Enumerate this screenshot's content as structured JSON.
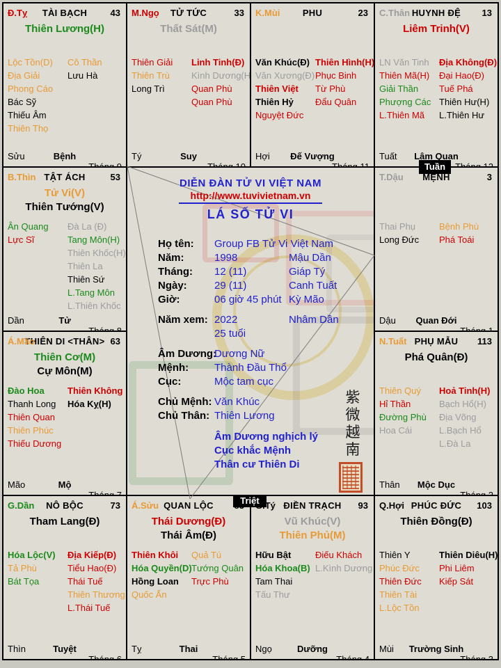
{
  "palette": {
    "red": "#cc0000",
    "orange": "#e89b35",
    "green": "#1a8a1a",
    "gray": "#9c9c9c",
    "black": "#000000",
    "blue": "#2222cc"
  },
  "badges": {
    "tuan": "Tuần",
    "triet": "Triệt"
  },
  "center": {
    "forum_title": "DIỄN ĐÀN TỬ VI VIỆT NAM",
    "url": "http://www.tuvivietnam.vn",
    "chart_title": "LÁ SỐ TỬ VI",
    "fields": [
      {
        "label": "Họ tên:",
        "v1": "Group FB Tử Vi Việt Nam",
        "v2": ""
      },
      {
        "label": "Năm:",
        "v1": "1998",
        "v2": "Mậu Dần"
      },
      {
        "label": "Tháng:",
        "v1": "12 (11)",
        "v2": "Giáp Tý"
      },
      {
        "label": "Ngày:",
        "v1": "29 (11)",
        "v2": "Canh Tuất"
      },
      {
        "label": "Giờ:",
        "v1": "06 giờ 45 phút",
        "v2": "Kỳ Mão"
      },
      {
        "label": "Năm xem:",
        "v1": "2022",
        "v2": "Nhâm Dần",
        "gap": true
      },
      {
        "label": "",
        "v1": "25 tuổi",
        "v2": ""
      },
      {
        "label": "Âm Dương:",
        "v1": "Dương Nữ",
        "v2": "",
        "gap": true
      },
      {
        "label": "Mệnh:",
        "v1": "Thành Đầu Thổ",
        "v2": ""
      },
      {
        "label": "Cục:",
        "v1": "Mộc tam cục",
        "v2": ""
      },
      {
        "label": "Chủ Mệnh:",
        "v1": "Văn Khúc",
        "v2": "",
        "gap": true
      },
      {
        "label": "Chủ Thân:",
        "v1": "Thiên Lương",
        "v2": ""
      }
    ],
    "notes": [
      "Âm Dương nghịch lý",
      "Cục khắc Mệnh",
      "Thân cư Thiên Di"
    ],
    "vertical_text": "紫微越南"
  },
  "palaces": [
    {
      "id": "tai-bach",
      "grid": {
        "row": 1,
        "col": 1
      },
      "chi": {
        "t": "Đ.Tỵ",
        "c": "red"
      },
      "name": "TÀI BẠCH",
      "num": "43",
      "mains": [
        {
          "t": "Thiên Lương(H)",
          "c": "green"
        }
      ],
      "left": [
        {
          "t": "Lộc Tồn(D)",
          "c": "orange"
        },
        {
          "t": "Địa Giải",
          "c": "orange"
        },
        {
          "t": "Phong Cáo",
          "c": "orange"
        },
        {
          "t": "Bác Sỹ",
          "c": "black"
        },
        {
          "t": "Thiếu Âm",
          "c": "black"
        },
        {
          "t": "Thiên Thọ",
          "c": "orange"
        }
      ],
      "right": [
        {
          "t": "Cô Thần",
          "c": "orange"
        },
        {
          "t": "Lưu Hà",
          "c": "black"
        }
      ],
      "branch": "Sửu",
      "van": "Bệnh",
      "month": "Tháng 9"
    },
    {
      "id": "tu-tuc",
      "grid": {
        "row": 1,
        "col": 2
      },
      "chi": {
        "t": "M.Ngọ",
        "c": "red"
      },
      "name": "TỬ TỨC",
      "num": "33",
      "mains": [
        {
          "t": "Thất Sát(M)",
          "c": "gray"
        }
      ],
      "left": [
        {
          "t": "Thiên Giải",
          "c": "red"
        },
        {
          "t": "Thiên Trù",
          "c": "orange"
        },
        {
          "t": "Long Trì",
          "c": "black"
        }
      ],
      "right": [
        {
          "t": "Linh Tinh(Đ)",
          "c": "red",
          "b": true
        },
        {
          "t": "Kình Dương(H)",
          "c": "gray"
        },
        {
          "t": "Quan Phù",
          "c": "red"
        },
        {
          "t": "Quan Phù",
          "c": "red"
        }
      ],
      "branch": "Tý",
      "van": "Suy",
      "month": "Tháng 10"
    },
    {
      "id": "phu",
      "grid": {
        "row": 1,
        "col": 3
      },
      "chi": {
        "t": "K.Mùi",
        "c": "orange"
      },
      "name": "PHU",
      "num": "23",
      "mains": [],
      "left": [
        {
          "t": "Văn Khúc(Đ)",
          "c": "black",
          "b": true
        },
        {
          "t": "Văn Xương(Đ)",
          "c": "gray"
        },
        {
          "t": "Thiên Việt",
          "c": "red",
          "b": true
        },
        {
          "t": "Thiên Hỷ",
          "c": "black",
          "b": true
        },
        {
          "t": "Nguyệt Đức",
          "c": "red"
        }
      ],
      "right": [
        {
          "t": "Thiên Hình(H)",
          "c": "red",
          "b": true
        },
        {
          "t": "Phục Binh",
          "c": "red"
        },
        {
          "t": "Từ Phù",
          "c": "red"
        },
        {
          "t": "Đẩu Quân",
          "c": "red"
        }
      ],
      "branch": "Hợi",
      "van": "Đế Vượng",
      "month": "Tháng 11"
    },
    {
      "id": "huynh-de",
      "grid": {
        "row": 1,
        "col": 4
      },
      "chi": {
        "t": "C.Thân",
        "c": "gray"
      },
      "name": "HUYNH ĐỆ",
      "num": "13",
      "mains": [
        {
          "t": "Liêm Trinh(V)",
          "c": "red"
        }
      ],
      "left": [
        {
          "t": "LN Văn Tinh",
          "c": "gray"
        },
        {
          "t": "Thiên Mã(H)",
          "c": "red"
        },
        {
          "t": "Giải Thần",
          "c": "green"
        },
        {
          "t": "Phượng Các",
          "c": "green"
        },
        {
          "t": "L.Thiên Mã",
          "c": "red"
        }
      ],
      "right": [
        {
          "t": "Địa Không(Đ)",
          "c": "red",
          "b": true
        },
        {
          "t": "Đại Hao(Đ)",
          "c": "red"
        },
        {
          "t": "Tuế Phá",
          "c": "red"
        },
        {
          "t": "Thiên Hư(H)",
          "c": "black"
        },
        {
          "t": "L.Thiên Hư",
          "c": "black"
        }
      ],
      "branch": "Tuất",
      "van": "Lâm Quan",
      "month": "Tháng 12"
    },
    {
      "id": "tat-ach",
      "grid": {
        "row": 2,
        "col": 1
      },
      "chi": {
        "t": "B.Thìn",
        "c": "orange"
      },
      "name": "TẬT ÁCH",
      "num": "53",
      "mains": [
        {
          "t": "Tử Vi(V)",
          "c": "orange"
        },
        {
          "t": "Thiên Tướng(V)",
          "c": "black"
        }
      ],
      "left": [
        {
          "t": "Ân Quang",
          "c": "green"
        },
        {
          "t": "Lực Sĩ",
          "c": "red"
        }
      ],
      "right": [
        {
          "t": "Đà La (Đ)",
          "c": "gray"
        },
        {
          "t": "Tang Môn(H)",
          "c": "green"
        },
        {
          "t": "Thiên Khốc(H)",
          "c": "gray"
        },
        {
          "t": "Thiên La",
          "c": "gray"
        },
        {
          "t": "Thiên Sứ",
          "c": "black"
        },
        {
          "t": "L.Tang Môn",
          "c": "green"
        },
        {
          "t": "L.Thiên Khốc",
          "c": "gray"
        }
      ],
      "branch": "Dần",
      "van": "Tử",
      "month": "Tháng 8"
    },
    {
      "id": "menh",
      "grid": {
        "row": 2,
        "col": 4
      },
      "chi": {
        "t": "T.Dậu",
        "c": "gray"
      },
      "name": "MỆNH",
      "num": "3",
      "mains": [],
      "left": [
        {
          "t": "Thai Phụ",
          "c": "gray"
        },
        {
          "t": "Long Đức",
          "c": "black"
        }
      ],
      "right": [
        {
          "t": "Bệnh Phù",
          "c": "orange"
        },
        {
          "t": "Phá Toái",
          "c": "red"
        }
      ],
      "branch": "Dậu",
      "van": "Quan Đới",
      "month": "Tháng 1"
    },
    {
      "id": "thien-di",
      "grid": {
        "row": 3,
        "col": 1
      },
      "chi": {
        "t": "Á.Mão",
        "c": "orange"
      },
      "name": "THIÊN DI <THÂN>",
      "num": "63",
      "mains": [
        {
          "t": "Thiên Cơ(M)",
          "c": "green"
        },
        {
          "t": "Cự Môn(M)",
          "c": "black"
        }
      ],
      "left": [
        {
          "t": "Đào Hoa",
          "c": "green",
          "b": true
        },
        {
          "t": "Thanh Long",
          "c": "black"
        },
        {
          "t": "Thiên Quan",
          "c": "red"
        },
        {
          "t": "Thiên Phúc",
          "c": "orange"
        },
        {
          "t": "Thiếu Dương",
          "c": "red"
        }
      ],
      "right": [
        {
          "t": "Thiên Không",
          "c": "red",
          "b": true
        },
        {
          "t": "Hóa Kỵ(H)",
          "c": "black",
          "b": true
        }
      ],
      "branch": "Mão",
      "van": "Mộ",
      "month": "Tháng 7"
    },
    {
      "id": "phu-mau",
      "grid": {
        "row": 3,
        "col": 4
      },
      "chi": {
        "t": "N.Tuất",
        "c": "orange"
      },
      "name": "PHỤ MẪU",
      "num": "113",
      "mains": [
        {
          "t": "Phá Quân(Đ)",
          "c": "black"
        }
      ],
      "left": [
        {
          "t": "Thiên Quý",
          "c": "orange"
        },
        {
          "t": "Hỉ Thần",
          "c": "red"
        },
        {
          "t": "Đường Phù",
          "c": "green"
        },
        {
          "t": "Hoa Cái",
          "c": "gray"
        }
      ],
      "right": [
        {
          "t": "Hoả Tinh(H)",
          "c": "red",
          "b": true
        },
        {
          "t": "Bạch Hổ(H)",
          "c": "gray"
        },
        {
          "t": "Địa Võng",
          "c": "gray"
        },
        {
          "t": "L.Bạch Hổ",
          "c": "gray"
        },
        {
          "t": "L.Đà La",
          "c": "gray"
        }
      ],
      "branch": "Thân",
      "van": "Mộc Dục",
      "month": "Tháng 2"
    },
    {
      "id": "no-boc",
      "grid": {
        "row": 4,
        "col": 1
      },
      "chi": {
        "t": "G.Dần",
        "c": "green"
      },
      "name": "NÔ BỘC",
      "num": "73",
      "mains": [
        {
          "t": "Tham Lang(Đ)",
          "c": "black"
        }
      ],
      "left": [
        {
          "t": "Hóa Lộc(V)",
          "c": "green",
          "b": true
        },
        {
          "t": "Tả Phù",
          "c": "orange"
        },
        {
          "t": "Bát Tọa",
          "c": "green"
        }
      ],
      "right": [
        {
          "t": "Địa Kiếp(Đ)",
          "c": "red",
          "b": true
        },
        {
          "t": "Tiểu Hao(Đ)",
          "c": "red"
        },
        {
          "t": "Thái Tuế",
          "c": "red"
        },
        {
          "t": "Thiên Thương",
          "c": "orange"
        },
        {
          "t": "L.Thái Tuế",
          "c": "red"
        }
      ],
      "branch": "Thìn",
      "van": "Tuyệt",
      "month": "Tháng 6"
    },
    {
      "id": "quan-loc",
      "grid": {
        "row": 4,
        "col": 2
      },
      "chi": {
        "t": "Á.Sửu",
        "c": "orange"
      },
      "name": "QUAN LỘC",
      "num": "83",
      "mains": [
        {
          "t": "Thái Dương(Đ)",
          "c": "red"
        },
        {
          "t": "Thái Âm(Đ)",
          "c": "black"
        }
      ],
      "left": [
        {
          "t": "Thiên Khôi",
          "c": "red",
          "b": true
        },
        {
          "t": "Hóa Quyền(D)",
          "c": "green",
          "b": true
        },
        {
          "t": "Hồng Loan",
          "c": "black",
          "b": true
        },
        {
          "t": "Quốc Ấn",
          "c": "orange"
        }
      ],
      "right": [
        {
          "t": "Quả Tú",
          "c": "orange"
        },
        {
          "t": "Tướng Quân",
          "c": "green"
        },
        {
          "t": "Trực Phù",
          "c": "red"
        }
      ],
      "branch": "Tỵ",
      "van": "Thai",
      "month": "Tháng 5"
    },
    {
      "id": "dien-trach",
      "grid": {
        "row": 4,
        "col": 3
      },
      "chi": {
        "t": "G.Tý",
        "c": "black"
      },
      "name": "ĐIỀN TRẠCH",
      "num": "93",
      "mains": [
        {
          "t": "Vũ Khúc(V)",
          "c": "gray"
        },
        {
          "t": "Thiên Phủ(M)",
          "c": "orange"
        }
      ],
      "left": [
        {
          "t": "Hữu Bật",
          "c": "black",
          "b": true
        },
        {
          "t": "Hóa Khoa(B)",
          "c": "green",
          "b": true
        },
        {
          "t": "Tam Thai",
          "c": "black"
        },
        {
          "t": "Tấu Thư",
          "c": "gray"
        }
      ],
      "right": [
        {
          "t": "Điếu Khách",
          "c": "red"
        },
        {
          "t": "L.Kình Dương",
          "c": "gray"
        }
      ],
      "branch": "Ngọ",
      "van": "Dưỡng",
      "month": "Tháng 4"
    },
    {
      "id": "phuc-duc",
      "grid": {
        "row": 4,
        "col": 4
      },
      "chi": {
        "t": "Q.Hợi",
        "c": "black"
      },
      "name": "PHÚC ĐỨC",
      "num": "103",
      "mains": [
        {
          "t": "Thiên Đồng(Đ)",
          "c": "black"
        }
      ],
      "left": [
        {
          "t": "Thiên Y",
          "c": "black"
        },
        {
          "t": "Phúc Đức",
          "c": "orange"
        },
        {
          "t": "Thiên Đức",
          "c": "red"
        },
        {
          "t": "Thiên Tài",
          "c": "orange"
        },
        {
          "t": "L.Lộc Tồn",
          "c": "orange"
        }
      ],
      "right": [
        {
          "t": "Thiên Diêu(H)",
          "c": "black",
          "b": true
        },
        {
          "t": "Phi Liêm",
          "c": "red"
        },
        {
          "t": "Kiếp Sát",
          "c": "red"
        }
      ],
      "branch": "Mùi",
      "van": "Trường Sinh",
      "month": "Tháng 3"
    }
  ]
}
